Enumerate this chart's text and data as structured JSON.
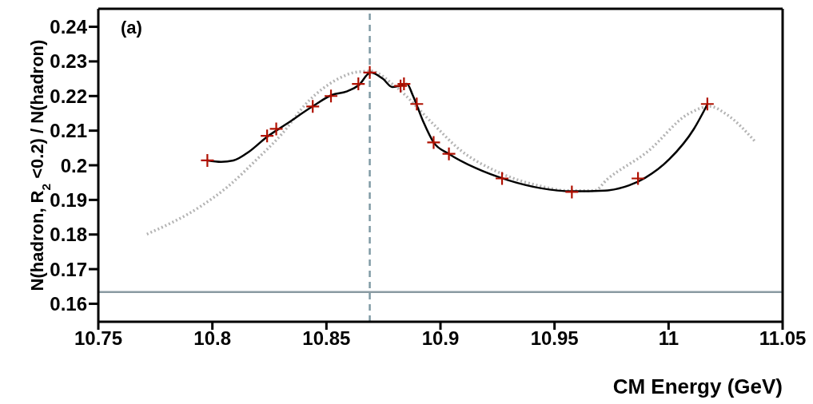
{
  "chart_data": {
    "type": "scatter",
    "xlabel": "CM Energy (GeV)",
    "ylabel": "N(hadron, R$_{2}$<0.2) / N(hadron)",
    "annotations": [
      "(a)"
    ],
    "xlim": [
      10.75,
      11.05
    ],
    "xticks": [
      10.75,
      10.8,
      10.85,
      10.9,
      10.95,
      11,
      11.05
    ],
    "ylim": [
      0.1548,
      0.2452
    ],
    "yticks": [
      0.16,
      0.17,
      0.18,
      0.19,
      0.2,
      0.21,
      0.22,
      0.23,
      0.24
    ],
    "series": [
      {
        "type": "line",
        "color": "#b4b4b4",
        "line_style": "dotted",
        "marker": "none",
        "x": [
          10.7713,
          10.795,
          10.8067,
          10.8187,
          10.8304,
          10.8421,
          10.8541,
          10.8623,
          10.8694,
          10.88,
          10.8967,
          10.9083,
          10.925,
          10.9438,
          10.9555,
          10.9675,
          10.9732,
          10.9909,
          11.0086,
          11.0182,
          11.0252,
          11.0383
        ],
        "values": [
          0.1801,
          0.1882,
          0.1938,
          0.2012,
          0.209,
          0.2185,
          0.2246,
          0.2268,
          0.2272,
          0.2229,
          0.212,
          0.2046,
          0.1981,
          0.194,
          0.1927,
          0.1927,
          0.196,
          0.204,
          0.2148,
          0.217,
          0.2148,
          0.2066
        ]
      },
      {
        "type": "line",
        "color": "#000000",
        "line_style": "solid",
        "marker": "none",
        "x": [
          10.7978,
          10.8038,
          10.8092,
          10.8162,
          10.8237,
          10.8322,
          10.8439,
          10.8524,
          10.8588,
          10.8641,
          10.8694,
          10.8747,
          10.8789,
          10.8818,
          10.8853,
          10.8878,
          10.8924,
          10.897,
          10.9037,
          10.9154,
          10.9296,
          10.9438,
          10.9579,
          10.9721,
          10.9827,
          10.9898,
          11.0004,
          11.0111,
          11.0171
        ],
        "values": [
          0.2014,
          0.201,
          0.2014,
          0.204,
          0.2081,
          0.2118,
          0.217,
          0.2203,
          0.2213,
          0.2231,
          0.2268,
          0.225,
          0.2226,
          0.2229,
          0.2235,
          0.2203,
          0.2127,
          0.2066,
          0.2033,
          0.1992,
          0.1957,
          0.1934,
          0.1925,
          0.1927,
          0.1942,
          0.1964,
          0.2018,
          0.2105,
          0.2177
        ]
      },
      {
        "color": "#b01000",
        "marker": "cross",
        "x": [
          10.7978,
          10.824,
          10.828,
          10.844,
          10.852,
          10.864,
          10.869,
          10.8825,
          10.884,
          10.8896,
          10.897,
          10.9037,
          10.927,
          10.9576,
          10.9866,
          11.017
        ],
        "values": [
          0.2014,
          0.2085,
          0.2105,
          0.217,
          0.22,
          0.2235,
          0.2268,
          0.2229,
          0.2235,
          0.2177,
          0.2066,
          0.2033,
          0.1962,
          0.1923,
          0.1962,
          0.2177
        ]
      }
    ],
    "ref_lines": [
      {
        "axis": "x",
        "value": 10.869,
        "color": "#7f9aa5",
        "line_style": "dashed"
      },
      {
        "axis": "y",
        "value": 0.1634,
        "color": "#8a9aa2",
        "line_style": "solid"
      }
    ]
  }
}
